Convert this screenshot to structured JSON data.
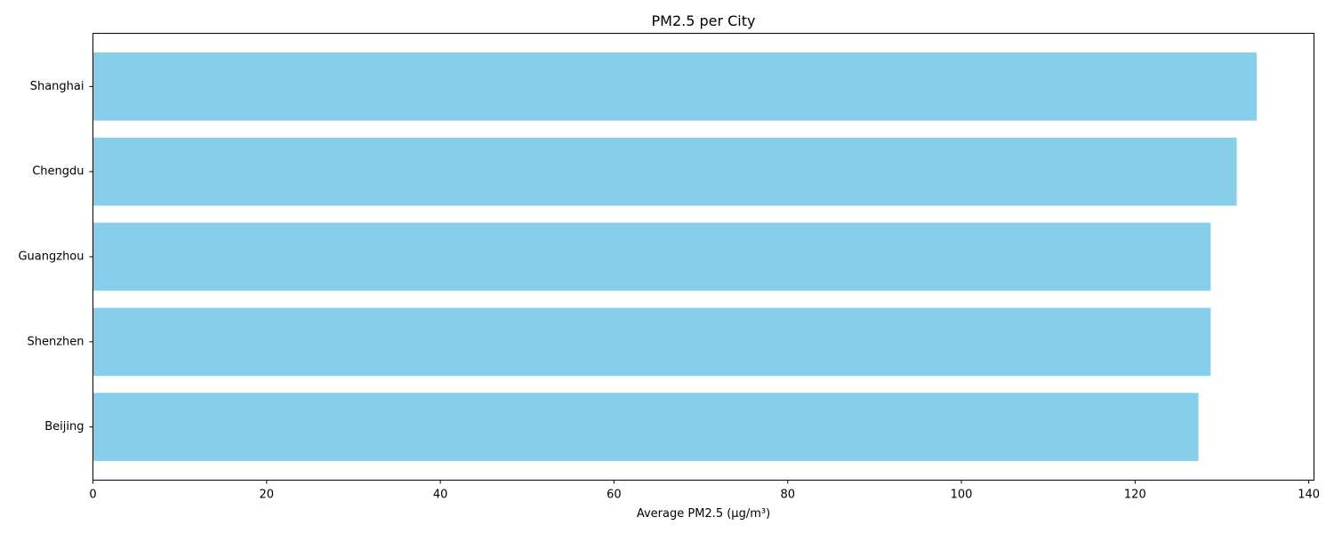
{
  "chart_data": {
    "type": "bar",
    "orientation": "horizontal",
    "title": "PM2.5 per City",
    "xlabel": "Average PM2.5 (µg/m³)",
    "ylabel": "",
    "categories": [
      "Shanghai",
      "Chengdu",
      "Guangzhou",
      "Shenzhen",
      "Beijing"
    ],
    "values": [
      134.0,
      131.7,
      128.7,
      128.7,
      127.3
    ],
    "xlim": [
      0,
      140.6
    ],
    "xticks": [
      0,
      20,
      40,
      60,
      80,
      100,
      120,
      140
    ],
    "bar_color": "#87CEEB",
    "grid": false,
    "legend": "none"
  }
}
